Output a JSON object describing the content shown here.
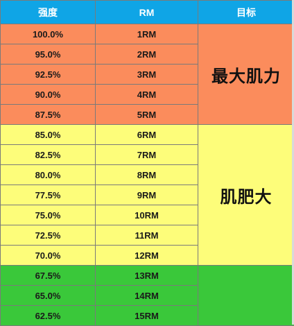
{
  "table": {
    "headers": {
      "intensity": "强度",
      "rm": "RM",
      "goal": "目标"
    },
    "rows": [
      {
        "intensity": "100.0%",
        "rm": "1RM"
      },
      {
        "intensity": "95.0%",
        "rm": "2RM"
      },
      {
        "intensity": "92.5%",
        "rm": "3RM"
      },
      {
        "intensity": "90.0%",
        "rm": "4RM"
      },
      {
        "intensity": "87.5%",
        "rm": "5RM"
      },
      {
        "intensity": "85.0%",
        "rm": "6RM"
      },
      {
        "intensity": "82.5%",
        "rm": "7RM"
      },
      {
        "intensity": "80.0%",
        "rm": "8RM"
      },
      {
        "intensity": "77.5%",
        "rm": "9RM"
      },
      {
        "intensity": "75.0%",
        "rm": "10RM"
      },
      {
        "intensity": "72.5%",
        "rm": "11RM"
      },
      {
        "intensity": "70.0%",
        "rm": "12RM"
      },
      {
        "intensity": "67.5%",
        "rm": "13RM"
      },
      {
        "intensity": "65.0%",
        "rm": "14RM"
      },
      {
        "intensity": "62.5%",
        "rm": "15RM"
      }
    ],
    "goals": {
      "strength": "最大肌力",
      "hypertrophy": "肌肥大",
      "third": ""
    }
  },
  "colors": {
    "header": "#0fa5e6",
    "strength_zone": "#fb8c5c",
    "hypertrophy_zone": "#fdfd7a",
    "third_zone": "#3ac83a"
  }
}
